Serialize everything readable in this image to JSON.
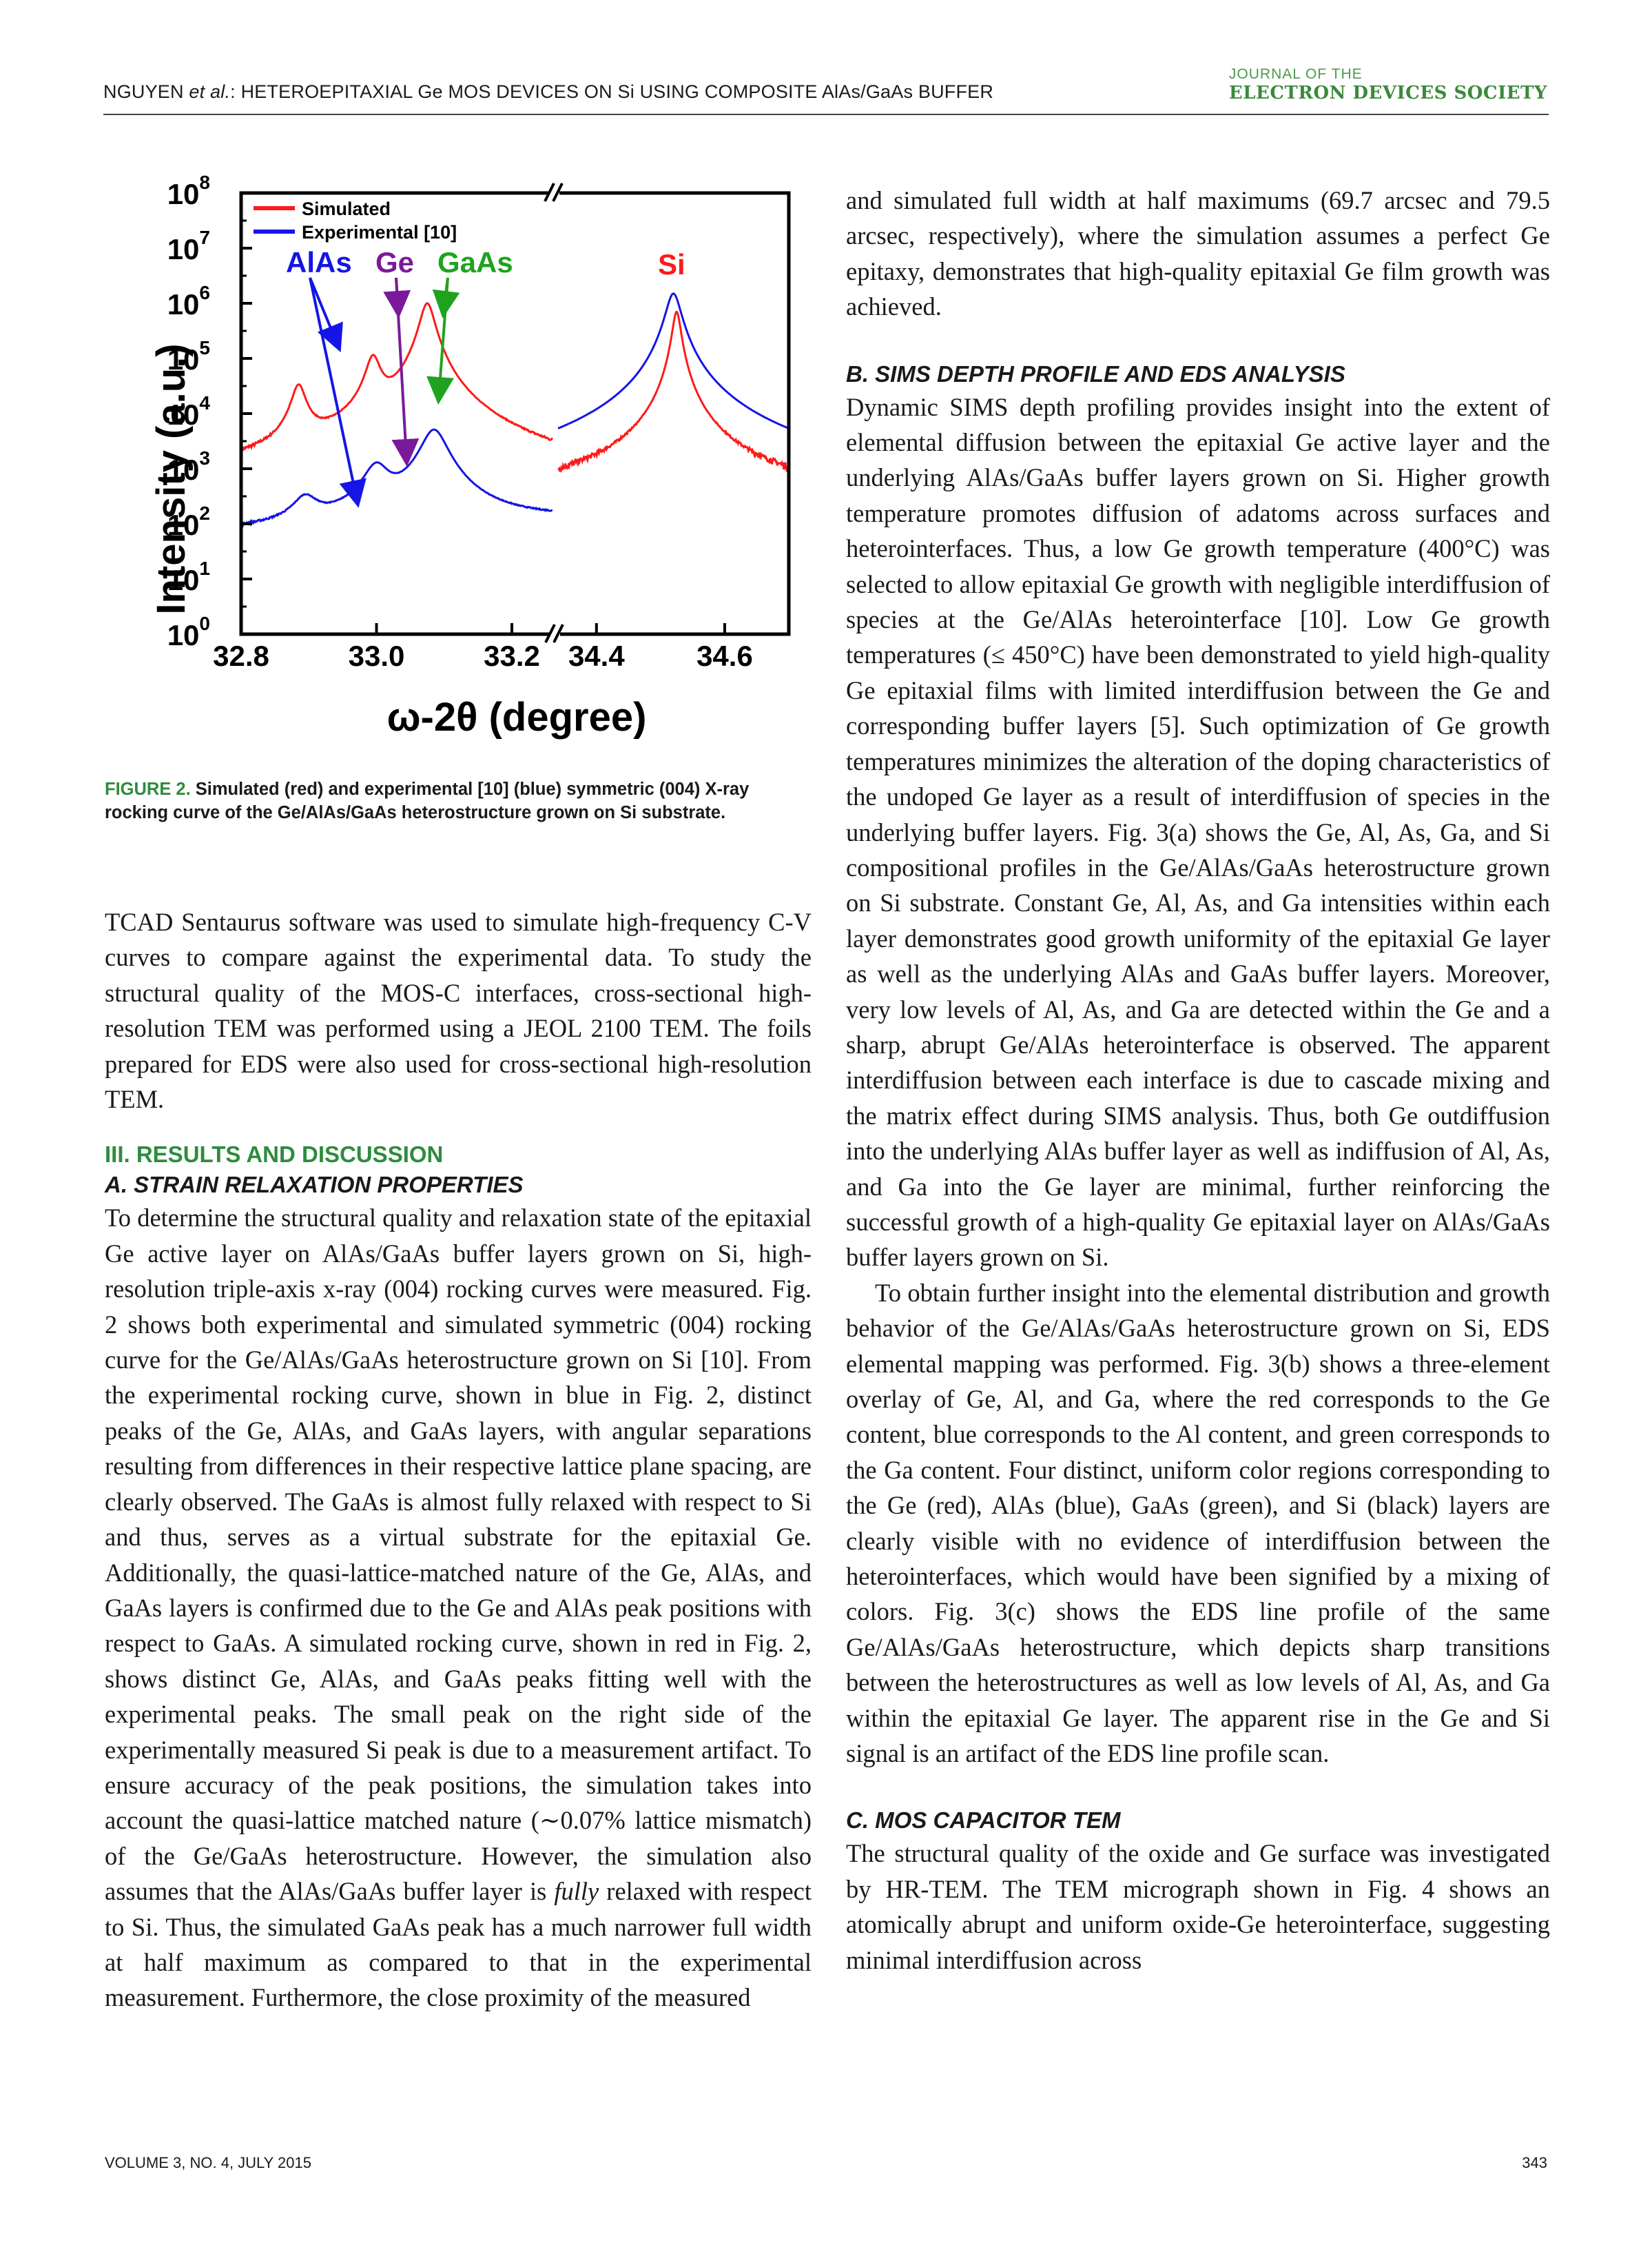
{
  "header": {
    "running_head_author": "NGUYEN ",
    "running_head_etal": "et al.",
    "running_head_rest": ": HETEROEPITAXIAL Ge MOS DEVICES ON Si USING COMPOSITE AlAs/GaAs BUFFER",
    "journal_top": "JOURNAL OF THE",
    "journal_bottom": "ELECTRON DEVICES SOCIETY"
  },
  "figure": {
    "caption_label": "FIGURE 2.",
    "caption_text": " Simulated (red) and experimental [10] (blue) symmetric (004) X-ray rocking curve of the Ge/AlAs/GaAs heterostructure grown on Si substrate."
  },
  "chart_data": {
    "type": "line",
    "title": "",
    "xlabel": "ω-2θ (degree)",
    "ylabel": "Intensity (a.u.)",
    "y_scale": "log",
    "ylim": [
      1,
      100000000
    ],
    "y_ticks": [
      "10^0",
      "10^1",
      "10^2",
      "10^3",
      "10^4",
      "10^5",
      "10^6",
      "10^7",
      "10^8"
    ],
    "x_axis_broken": true,
    "x_segments": [
      [
        32.8,
        33.26
      ],
      [
        34.34,
        34.7
      ]
    ],
    "x_tick_labels": [
      "32.8",
      "33.0",
      "33.2",
      "34.4",
      "34.6"
    ],
    "legend": {
      "position": "top-left",
      "entries": [
        "Simulated",
        "Experimental [10]"
      ]
    },
    "series": [
      {
        "name": "Simulated",
        "color": "#ff1a1a",
        "peaks": [
          {
            "x": 32.885,
            "y": 30000
          },
          {
            "x": 32.995,
            "y": 100000
          },
          {
            "x": 33.075,
            "y": 1000000
          },
          {
            "x": 34.525,
            "y": 700000
          }
        ],
        "noise_floor": 150
      },
      {
        "name": "Experimental [10]",
        "color": "#1515e6",
        "peaks": [
          {
            "x": 32.895,
            "y": 200
          },
          {
            "x": 33.0,
            "y": 1000
          },
          {
            "x": 33.085,
            "y": 5000
          },
          {
            "x": 34.52,
            "y": 1500000
          }
        ],
        "noise_floor": 3
      }
    ],
    "annotations": [
      {
        "text": "AlAs",
        "color": "#1515e6"
      },
      {
        "text": "Ge",
        "color": "#7a1a9a"
      },
      {
        "text": "GaAs",
        "color": "#1fa31f"
      },
      {
        "text": "Si",
        "color": "#ff1a1a"
      }
    ]
  },
  "left_col": {
    "p1": "TCAD Sentaurus software was used to simulate high-frequency C-V curves to compare against the experimental data. To study the structural quality of the MOS-C interfaces, cross-sectional high-resolution TEM was performed using a JEOL 2100 TEM. The foils prepared for EDS were also used for cross-sectional high-resolution TEM.",
    "sec3": "III. RESULTS AND DISCUSSION",
    "subA": "A. STRAIN RELAXATION PROPERTIES",
    "p2a": "To determine the structural quality and relaxation state of the epitaxial Ge active layer on AlAs/GaAs buffer layers grown on Si, high-resolution triple-axis x-ray (004) rocking curves were measured. Fig. 2 shows both experimental and simulated symmetric (004) rocking curve for the Ge/AlAs/GaAs heterostructure grown on Si [10]. From the experimental rocking curve, shown in blue in Fig. 2, distinct peaks of the Ge, AlAs, and GaAs layers, with angular separations resulting from differences in their respective lattice plane spacing, are clearly observed. The GaAs is almost fully relaxed with respect to Si and thus, serves as a virtual substrate for the epitaxial Ge. Additionally, the quasi-lattice-matched nature of the Ge, AlAs, and GaAs layers is confirmed due to the Ge and AlAs peak positions with respect to GaAs. A simulated rocking curve, shown in red in Fig. 2, shows distinct Ge, AlAs, and GaAs peaks fitting well with the experimental peaks. The small peak on the right side of the experimentally measured Si peak is due to a measurement artifact. To ensure accuracy of the peak positions, the simulation takes into account the quasi-lattice matched nature (∼0.07% lattice mismatch) of the Ge/GaAs heterostructure. However, the simulation also assumes that the AlAs/GaAs buffer layer is ",
    "p2_italic": "fully",
    "p2b": " relaxed with respect to Si. Thus, the simulated GaAs peak has a much narrower full width at half maximum as compared to that in the experimental measurement. Furthermore, the close proximity of the measured"
  },
  "right_col": {
    "p1": "and simulated full width at half maximums (69.7 arcsec and 79.5 arcsec, respectively), where the simulation assumes a perfect Ge epitaxy, demonstrates that high-quality epitaxial Ge film growth was achieved.",
    "subB": "B. SIMS DEPTH PROFILE AND EDS ANALYSIS",
    "p2": "Dynamic SIMS depth profiling provides insight into the extent of elemental diffusion between the epitaxial Ge active layer and the underlying AlAs/GaAs buffer layers grown on Si. Higher growth temperature promotes diffusion of adatoms across surfaces and heterointerfaces. Thus, a low Ge growth temperature (400°C) was selected to allow epitaxial Ge growth with negligible interdiffusion of species at the Ge/AlAs heterointerface [10]. Low Ge growth temperatures (≤ 450°C) have been demonstrated to yield high-quality Ge epitaxial films with limited interdiffusion between the Ge and corresponding buffer layers [5]. Such optimization of Ge growth temperatures minimizes the alteration of the doping characteristics of the undoped Ge layer as a result of interdiffusion of species in the underlying buffer layers. Fig. 3(a) shows the Ge, Al, As, Ga, and Si compositional profiles in the Ge/AlAs/GaAs heterostructure grown on Si substrate. Constant Ge, Al, As, and Ga intensities within each layer demonstrates good growth uniformity of the epitaxial Ge layer as well as the underlying AlAs and GaAs buffer layers. Moreover, very low levels of Al, As, and Ga are detected within the Ge and a sharp, abrupt Ge/AlAs heterointerface is observed. The apparent interdiffusion between each interface is due to cascade mixing and the matrix effect during SIMS analysis. Thus, both Ge outdiffusion into the underlying AlAs buffer layer as well as indiffusion of Al, As, and Ga into the Ge layer are minimal, further reinforcing the successful growth of a high-quality Ge epitaxial layer on AlAs/GaAs buffer layers grown on Si.",
    "p3": "To obtain further insight into the elemental distribution and growth behavior of the Ge/AlAs/GaAs heterostructure grown on Si, EDS elemental mapping was performed. Fig. 3(b) shows a three-element overlay of Ge, Al, and Ga, where the red corresponds to the Ge content, blue corresponds to the Al content, and green corresponds to the Ga content. Four distinct, uniform color regions corresponding to the Ge (red), AlAs (blue), GaAs (green), and Si (black) layers are clearly visible with no evidence of interdiffusion between the heterointerfaces, which would have been signified by a mixing of colors. Fig. 3(c) shows the EDS line profile of the same Ge/AlAs/GaAs heterostructure, which depicts sharp transitions between the heterostructures as well as low levels of Al, As, and Ga within the epitaxial Ge layer. The apparent rise in the Ge and Si signal is an artifact of the EDS line profile scan.",
    "subC": "C. MOS CAPACITOR TEM",
    "p4": "The structural quality of the oxide and Ge surface was investigated by HR-TEM. The TEM micrograph shown in Fig. 4 shows an atomically abrupt and uniform oxide-Ge heterointerface, suggesting minimal interdiffusion across"
  },
  "footer": {
    "volume": "VOLUME 3, NO. 4, JULY 2015",
    "page": "343"
  }
}
